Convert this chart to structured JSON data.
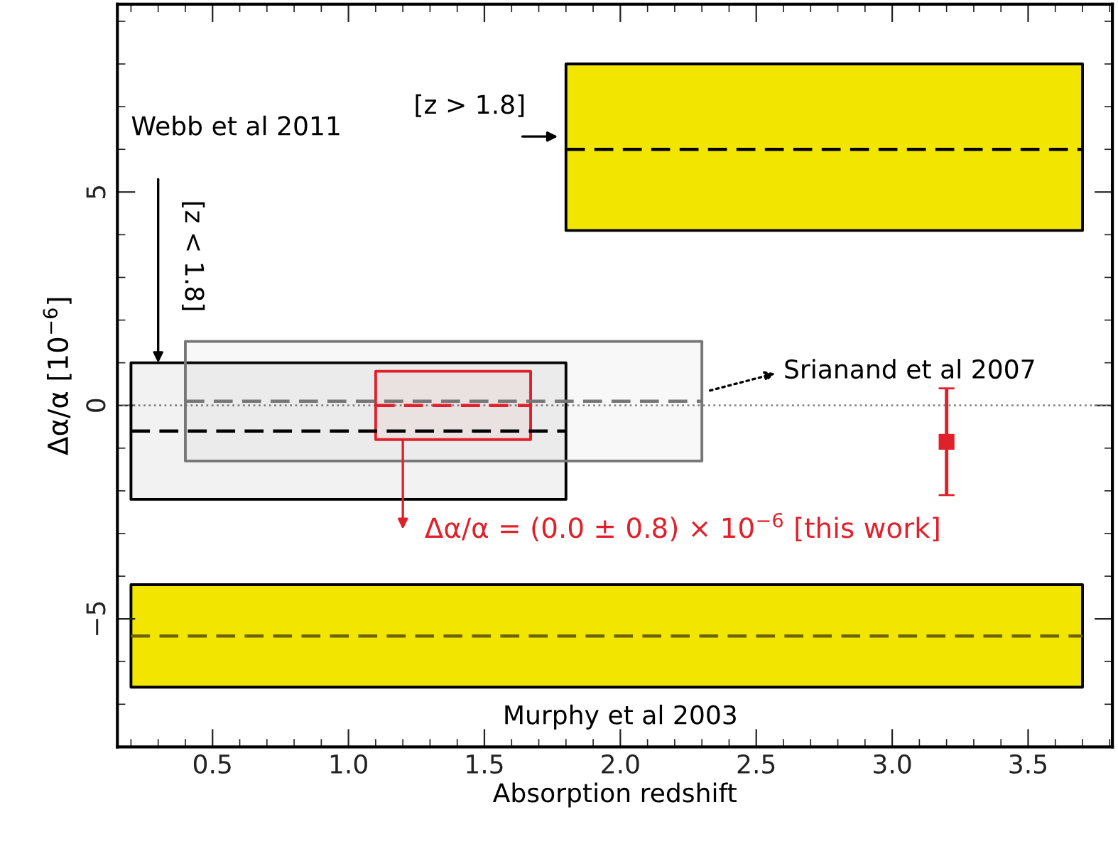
{
  "chart_data": {
    "type": "line",
    "xlabel": "Absorption redshift",
    "ylabel": "Δα/α [10$^{−6}$]",
    "xlim": [
      0.15,
      3.81
    ],
    "ylim": [
      -8,
      9.4
    ],
    "xticks": [
      0.5,
      {
        "value": 1,
        "label": "1.0"
      },
      1.5,
      {
        "value": 2,
        "label": "2.0"
      },
      2.5,
      {
        "value": 3,
        "label": "3.0"
      },
      3.5
    ],
    "yticks": [
      {
        "value": -5,
        "label": "−5"
      },
      0,
      5
    ],
    "series": [
      {
        "color": "#000000",
        "colors": [
          "#f2e600",
          "#f2e600"
        ],
        "line_style": "dashed",
        "x": [
          1.8,
          3.7
        ],
        "values": [
          6.0,
          6.0
        ],
        "lower": [
          4.1,
          4.1
        ],
        "upper": [
          8.0,
          8.0
        ]
      },
      {
        "color": "#6b6400",
        "colors": [
          "#f2e600",
          "#f2e600"
        ],
        "line_style": "dashed",
        "x": [
          0.2,
          3.7
        ],
        "values": [
          -5.4,
          -5.4
        ],
        "lower": [
          -6.6,
          -6.6
        ],
        "upper": [
          -4.2,
          -4.2
        ]
      },
      {
        "color": "#000000",
        "line_style": "dashed",
        "x": [
          0.2,
          1.8
        ],
        "values": [
          -0.6,
          -0.6
        ],
        "lower": [
          -2.2,
          -2.2
        ],
        "upper": [
          1.0,
          1.0
        ]
      },
      {
        "color": "#777777",
        "line_style": "dashed",
        "x": [
          0.4,
          2.3
        ],
        "values": [
          0.1,
          0.1
        ],
        "lower": [
          -1.3,
          -1.3
        ],
        "upper": [
          1.5,
          1.5
        ]
      },
      {
        "color": "#e0202a",
        "line_style": "dashed",
        "x": [
          1.1,
          1.67
        ],
        "values": [
          0.0,
          0.0
        ],
        "lower": [
          -0.8,
          -0.8
        ],
        "upper": [
          0.8,
          0.8
        ]
      },
      {
        "type": "scatter",
        "color": "#e0202a",
        "marker": "square",
        "x": [
          3.2
        ],
        "values": [
          -0.85
        ],
        "errors": [
          1.25
        ]
      }
    ],
    "ref_lines": [
      {
        "axis": "y",
        "value": 0,
        "color": "#888888",
        "line_style": "dotted"
      }
    ],
    "annotations": [
      "Webb et al 2011",
      "[z > 1.8]",
      {
        "text": "[z < 1.8]",
        "x": 0.3,
        "y": 1.0
      },
      "Srianand et al 2007",
      {
        "text": "Δα/α = (0.0 ± 0.8) × 10$^{−6}$ [this work]",
        "x": 1.2,
        "y": -0.8
      },
      "Murphy et al 2003"
    ]
  }
}
